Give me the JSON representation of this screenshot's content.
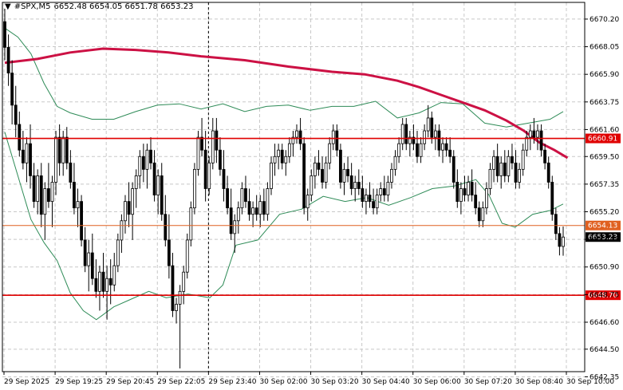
{
  "header": {
    "dropdown_icon": "triangle-down-icon",
    "symbol": "#SPX,M5",
    "ohlc": "6652.48 6654.05 6651.78 6653.23"
  },
  "chart_data": {
    "type": "candlestick",
    "title": "#SPX,M5",
    "ylim": [
      6642.75,
      6671.5
    ],
    "y_ticks": [
      "6670.20",
      "6668.05",
      "6665.90",
      "6663.75",
      "6661.60",
      "6659.50",
      "6657.35",
      "6655.20",
      "6653.05",
      "6650.90",
      "6648.75",
      "6646.60",
      "6644.50",
      "6642.35"
    ],
    "x_ticks": [
      "29 Sep 2025",
      "29 Sep 19:25",
      "29 Sep 20:45",
      "29 Sep 22:05",
      "29 Sep 23:40",
      "30 Sep 02:00",
      "30 Sep 03:20",
      "30 Sep 04:40",
      "30 Sep 06:00",
      "30 Sep 07:20",
      "30 Sep 08:40",
      "30 Sep 10:00"
    ],
    "grid": true,
    "vertical_marker": "29 Sep 23:40",
    "horizontal_levels": [
      {
        "value": 6660.91,
        "label": "6660.91",
        "color": "#e00000"
      },
      {
        "value": 6654.13,
        "label": "6654.13",
        "color": "#e06020"
      },
      {
        "value": 6648.7,
        "label": "6648.70",
        "color": "#e00000"
      }
    ],
    "current_price": {
      "value": 6653.23,
      "label": "6653.23"
    },
    "colors": {
      "candle": "#000000",
      "moving_average": "#cc1144",
      "bands": "#2e8b57",
      "level": "#e00000",
      "level_mid": "#e06020"
    },
    "moving_average": [
      [
        0,
        6666.8
      ],
      [
        15,
        6667.1
      ],
      [
        30,
        6667.6
      ],
      [
        45,
        6667.9
      ],
      [
        60,
        6667.8
      ],
      [
        75,
        6667.6
      ],
      [
        90,
        6667.3
      ],
      [
        110,
        6667.0
      ],
      [
        130,
        6666.5
      ],
      [
        150,
        6666.1
      ],
      [
        165,
        6665.9
      ],
      [
        180,
        6665.4
      ],
      [
        190,
        6664.9
      ],
      [
        200,
        6664.3
      ],
      [
        210,
        6663.7
      ],
      [
        220,
        6663.1
      ],
      [
        230,
        6662.3
      ],
      [
        238,
        6661.5
      ],
      [
        245,
        6660.6
      ],
      [
        252,
        6660.0
      ],
      [
        258,
        6659.4
      ]
    ],
    "upper_band": [
      [
        0,
        6669.5
      ],
      [
        6,
        6668.8
      ],
      [
        12,
        6667.5
      ],
      [
        18,
        6665.2
      ],
      [
        24,
        6663.4
      ],
      [
        30,
        6662.9
      ],
      [
        40,
        6662.4
      ],
      [
        50,
        6662.4
      ],
      [
        60,
        6663.0
      ],
      [
        70,
        6663.5
      ],
      [
        80,
        6663.6
      ],
      [
        90,
        6663.2
      ],
      [
        100,
        6663.6
      ],
      [
        110,
        6663.0
      ],
      [
        120,
        6663.4
      ],
      [
        130,
        6663.5
      ],
      [
        140,
        6663.1
      ],
      [
        150,
        6663.4
      ],
      [
        160,
        6663.4
      ],
      [
        170,
        6663.8
      ],
      [
        180,
        6662.5
      ],
      [
        190,
        6662.9
      ],
      [
        200,
        6663.7
      ],
      [
        210,
        6663.6
      ],
      [
        220,
        6662.1
      ],
      [
        230,
        6661.8
      ],
      [
        240,
        6662.1
      ],
      [
        250,
        6662.4
      ],
      [
        256,
        6663.0
      ]
    ],
    "lower_band": [
      [
        0,
        6661.4
      ],
      [
        6,
        6658.0
      ],
      [
        12,
        6654.6
      ],
      [
        18,
        6652.8
      ],
      [
        24,
        6651.4
      ],
      [
        30,
        6648.9
      ],
      [
        36,
        6647.5
      ],
      [
        42,
        6646.8
      ],
      [
        50,
        6647.8
      ],
      [
        58,
        6648.4
      ],
      [
        66,
        6649.0
      ],
      [
        74,
        6648.5
      ],
      [
        84,
        6648.8
      ],
      [
        94,
        6648.5
      ],
      [
        100,
        6649.5
      ],
      [
        106,
        6652.6
      ],
      [
        116,
        6653.0
      ],
      [
        126,
        6655.0
      ],
      [
        136,
        6655.4
      ],
      [
        146,
        6656.4
      ],
      [
        156,
        6656.0
      ],
      [
        166,
        6656.3
      ],
      [
        176,
        6655.7
      ],
      [
        186,
        6656.3
      ],
      [
        196,
        6657.0
      ],
      [
        206,
        6657.2
      ],
      [
        216,
        6657.7
      ],
      [
        222,
        6656.5
      ],
      [
        228,
        6654.3
      ],
      [
        234,
        6654.0
      ],
      [
        242,
        6655.0
      ],
      [
        250,
        6655.3
      ],
      [
        256,
        6655.8
      ]
    ],
    "candles": [
      [
        6670.0,
        6671.0,
        6667.0,
        6668.0
      ],
      [
        6668.0,
        6669.0,
        6665.0,
        6666.0
      ],
      [
        6666.0,
        6667.0,
        6662.0,
        6663.5
      ],
      [
        6663.5,
        6665.0,
        6661.0,
        6662.0
      ],
      [
        6662.0,
        6663.0,
        6659.5,
        6660.0
      ],
      [
        6660.0,
        6661.5,
        6658.5,
        6659.0
      ],
      [
        6659.0,
        6661.0,
        6657.5,
        6660.5
      ],
      [
        6660.5,
        6662.0,
        6657.0,
        6658.0
      ],
      [
        6658.0,
        6659.0,
        6655.5,
        6656.0
      ],
      [
        6656.0,
        6658.5,
        6655.0,
        6658.0
      ],
      [
        6658.0,
        6659.0,
        6654.0,
        6655.0
      ],
      [
        6655.0,
        6657.5,
        6653.0,
        6657.0
      ],
      [
        6657.0,
        6659.0,
        6655.5,
        6656.0
      ],
      [
        6656.0,
        6658.0,
        6654.0,
        6657.5
      ],
      [
        6657.5,
        6661.5,
        6656.5,
        6661.0
      ],
      [
        6661.0,
        6662.0,
        6658.0,
        6659.0
      ],
      [
        6659.0,
        6661.5,
        6658.0,
        6661.0
      ],
      [
        6661.0,
        6661.8,
        6658.5,
        6659.0
      ],
      [
        6659.0,
        6660.0,
        6657.0,
        6657.5
      ],
      [
        6657.5,
        6659.0,
        6655.0,
        6655.5
      ],
      [
        6655.5,
        6657.0,
        6654.0,
        6656.0
      ],
      [
        6656.0,
        6656.5,
        6652.5,
        6653.0
      ],
      [
        6653.0,
        6654.0,
        6650.5,
        6651.0
      ],
      [
        6651.0,
        6653.0,
        6649.0,
        6652.0
      ],
      [
        6652.0,
        6653.5,
        6649.5,
        6650.0
      ],
      [
        6650.0,
        6651.5,
        6648.5,
        6649.0
      ],
      [
        6649.0,
        6651.0,
        6647.5,
        6650.5
      ],
      [
        6650.5,
        6652.0,
        6648.5,
        6649.0
      ],
      [
        6649.0,
        6651.0,
        6646.8,
        6650.0
      ],
      [
        6650.0,
        6651.5,
        6648.0,
        6649.5
      ],
      [
        6649.5,
        6652.0,
        6649.0,
        6651.0
      ],
      [
        6651.0,
        6653.5,
        6650.5,
        6653.0
      ],
      [
        6653.0,
        6655.0,
        6652.0,
        6654.5
      ],
      [
        6654.5,
        6656.5,
        6653.5,
        6656.0
      ],
      [
        6656.0,
        6657.5,
        6654.0,
        6655.0
      ],
      [
        6655.0,
        6657.5,
        6653.0,
        6657.0
      ],
      [
        6657.0,
        6658.5,
        6655.5,
        6658.0
      ],
      [
        6658.0,
        6660.0,
        6657.0,
        6659.5
      ],
      [
        6659.5,
        6660.5,
        6657.5,
        6658.5
      ],
      [
        6658.5,
        6660.5,
        6657.0,
        6660.0
      ],
      [
        6660.0,
        6661.0,
        6658.5,
        6659.0
      ],
      [
        6659.0,
        6660.0,
        6656.0,
        6656.5
      ],
      [
        6656.5,
        6658.5,
        6655.0,
        6658.0
      ],
      [
        6658.0,
        6659.0,
        6654.5,
        6655.0
      ],
      [
        6655.0,
        6656.5,
        6652.5,
        6653.0
      ],
      [
        6653.0,
        6655.0,
        6650.0,
        6651.0
      ],
      [
        6651.0,
        6652.0,
        6647.0,
        6647.5
      ],
      [
        6647.5,
        6648.5,
        6646.5,
        6648.0
      ],
      [
        6648.0,
        6649.5,
        6643.0,
        6649.0
      ],
      [
        6649.0,
        6651.0,
        6648.0,
        6650.5
      ],
      [
        6650.5,
        6653.5,
        6650.0,
        6653.0
      ],
      [
        6653.0,
        6656.0,
        6652.5,
        6655.5
      ],
      [
        6655.5,
        6659.0,
        6655.0,
        6658.5
      ],
      [
        6658.5,
        6661.5,
        6658.0,
        6661.0
      ],
      [
        6661.0,
        6662.5,
        6659.5,
        6660.0
      ],
      [
        6660.0,
        6661.5,
        6656.0,
        6657.0
      ],
      [
        6657.0,
        6659.5,
        6656.5,
        6659.0
      ],
      [
        6659.0,
        6662.5,
        6658.5,
        6661.5
      ],
      [
        6661.5,
        6662.5,
        6659.0,
        6660.0
      ],
      [
        6660.0,
        6661.0,
        6658.0,
        6658.5
      ],
      [
        6658.5,
        6660.0,
        6656.0,
        6657.0
      ],
      [
        6657.0,
        6658.0,
        6655.0,
        6655.5
      ],
      [
        6655.5,
        6657.0,
        6653.0,
        6653.5
      ],
      [
        6653.5,
        6655.0,
        6652.0,
        6654.5
      ],
      [
        6654.5,
        6656.0,
        6653.5,
        6655.5
      ],
      [
        6655.5,
        6657.5,
        6655.0,
        6657.0
      ],
      [
        6657.0,
        6658.0,
        6655.5,
        6656.0
      ],
      [
        6656.0,
        6657.0,
        6654.5,
        6655.0
      ],
      [
        6655.0,
        6656.0,
        6654.0,
        6655.5
      ],
      [
        6655.5,
        6656.5,
        6654.5,
        6655.0
      ],
      [
        6655.0,
        6656.5,
        6654.0,
        6656.0
      ],
      [
        6656.0,
        6657.0,
        6654.5,
        6655.0
      ],
      [
        6655.0,
        6657.5,
        6654.5,
        6657.0
      ],
      [
        6657.0,
        6659.5,
        6656.5,
        6659.0
      ],
      [
        6659.0,
        6660.5,
        6658.0,
        6659.5
      ],
      [
        6659.5,
        6660.5,
        6658.5,
        6660.0
      ],
      [
        6660.0,
        6660.5,
        6658.5,
        6659.0
      ],
      [
        6659.0,
        6660.0,
        6658.0,
        6659.5
      ],
      [
        6659.5,
        6661.0,
        6659.0,
        6660.5
      ],
      [
        6660.5,
        6661.5,
        6659.5,
        6661.0
      ],
      [
        6661.0,
        6662.0,
        6660.5,
        6661.5
      ],
      [
        6661.5,
        6662.5,
        6660.0,
        6660.5
      ],
      [
        6660.5,
        6661.0,
        6655.0,
        6655.5
      ],
      [
        6655.5,
        6657.0,
        6654.5,
        6656.5
      ],
      [
        6656.5,
        6658.5,
        6656.0,
        6658.0
      ],
      [
        6658.0,
        6659.5,
        6657.0,
        6659.0
      ],
      [
        6659.0,
        6660.0,
        6658.0,
        6658.5
      ],
      [
        6658.5,
        6659.5,
        6657.0,
        6657.5
      ],
      [
        6657.5,
        6659.5,
        6657.0,
        6659.0
      ],
      [
        6659.0,
        6661.0,
        6658.5,
        6660.5
      ],
      [
        6660.5,
        6662.0,
        6660.0,
        6661.5
      ],
      [
        6661.5,
        6662.0,
        6659.5,
        6660.0
      ],
      [
        6660.0,
        6660.5,
        6657.0,
        6657.5
      ],
      [
        6657.5,
        6659.0,
        6656.5,
        6658.5
      ],
      [
        6658.5,
        6659.5,
        6657.5,
        6658.0
      ],
      [
        6658.0,
        6659.0,
        6656.5,
        6657.0
      ],
      [
        6657.0,
        6658.0,
        6656.0,
        6657.5
      ],
      [
        6657.5,
        6658.5,
        6656.5,
        6657.0
      ],
      [
        6657.0,
        6658.0,
        6655.5,
        6656.0
      ],
      [
        6656.0,
        6657.0,
        6655.0,
        6656.5
      ],
      [
        6656.5,
        6657.5,
        6655.5,
        6656.0
      ],
      [
        6656.0,
        6657.0,
        6655.0,
        6655.5
      ],
      [
        6655.5,
        6657.0,
        6655.0,
        6656.5
      ],
      [
        6656.5,
        6657.5,
        6656.0,
        6657.0
      ],
      [
        6657.0,
        6658.0,
        6656.0,
        6656.5
      ],
      [
        6656.5,
        6658.0,
        6656.0,
        6657.5
      ],
      [
        6657.5,
        6659.0,
        6657.0,
        6658.5
      ],
      [
        6658.5,
        6660.0,
        6658.0,
        6659.5
      ],
      [
        6659.5,
        6661.0,
        6659.0,
        6660.5
      ],
      [
        6660.5,
        6662.5,
        6660.0,
        6662.0
      ],
      [
        6662.0,
        6662.5,
        6660.0,
        6660.5
      ],
      [
        6660.5,
        6661.5,
        6659.5,
        6661.0
      ],
      [
        6661.0,
        6662.0,
        6660.0,
        6660.5
      ],
      [
        6660.5,
        6661.5,
        6659.0,
        6659.5
      ],
      [
        6659.5,
        6661.0,
        6659.0,
        6660.5
      ],
      [
        6660.5,
        6662.0,
        6660.0,
        6661.5
      ],
      [
        6661.5,
        6663.5,
        6661.0,
        6662.5
      ],
      [
        6662.5,
        6663.0,
        6660.5,
        6661.0
      ],
      [
        6661.0,
        6662.0,
        6660.0,
        6661.5
      ],
      [
        6661.5,
        6662.0,
        6659.5,
        6660.0
      ],
      [
        6660.0,
        6661.0,
        6659.0,
        6660.5
      ],
      [
        6660.5,
        6661.0,
        6659.5,
        6660.0
      ],
      [
        6660.0,
        6661.0,
        6659.0,
        6659.5
      ],
      [
        6659.5,
        6660.0,
        6657.0,
        6657.5
      ],
      [
        6657.5,
        6658.5,
        6655.5,
        6656.0
      ],
      [
        6656.0,
        6657.5,
        6655.0,
        6657.0
      ],
      [
        6657.0,
        6658.0,
        6656.0,
        6656.5
      ],
      [
        6656.5,
        6658.0,
        6656.0,
        6657.5
      ],
      [
        6657.5,
        6658.5,
        6656.0,
        6656.5
      ],
      [
        6656.5,
        6657.5,
        6655.0,
        6655.5
      ],
      [
        6655.5,
        6656.0,
        6654.0,
        6654.5
      ],
      [
        6654.5,
        6656.0,
        6654.0,
        6655.5
      ],
      [
        6655.5,
        6657.5,
        6655.0,
        6657.0
      ],
      [
        6657.0,
        6659.0,
        6656.5,
        6658.5
      ],
      [
        6658.5,
        6660.0,
        6657.5,
        6659.5
      ],
      [
        6659.5,
        6660.5,
        6657.5,
        6658.0
      ],
      [
        6658.0,
        6659.5,
        6657.0,
        6659.0
      ],
      [
        6659.0,
        6660.0,
        6657.5,
        6658.0
      ],
      [
        6658.0,
        6660.0,
        6657.5,
        6659.5
      ],
      [
        6659.5,
        6660.5,
        6658.5,
        6659.0
      ],
      [
        6659.0,
        6660.0,
        6657.0,
        6657.5
      ],
      [
        6657.5,
        6659.0,
        6657.0,
        6658.5
      ],
      [
        6658.5,
        6660.5,
        6658.0,
        6660.0
      ],
      [
        6660.0,
        6661.5,
        6659.5,
        6661.0
      ],
      [
        6661.0,
        6662.0,
        6660.0,
        6661.5
      ],
      [
        6661.5,
        6662.5,
        6660.5,
        6661.0
      ],
      [
        6661.0,
        6662.0,
        6660.0,
        6661.5
      ],
      [
        6661.5,
        6662.0,
        6659.5,
        6660.0
      ],
      [
        6660.0,
        6660.5,
        6658.5,
        6659.0
      ],
      [
        6659.0,
        6659.5,
        6657.0,
        6657.5
      ],
      [
        6657.5,
        6658.0,
        6654.5,
        6655.0
      ],
      [
        6655.0,
        6655.5,
        6653.0,
        6653.5
      ],
      [
        6653.5,
        6654.0,
        6651.8,
        6652.5
      ],
      [
        6652.5,
        6654.05,
        6651.78,
        6653.23
      ]
    ]
  }
}
